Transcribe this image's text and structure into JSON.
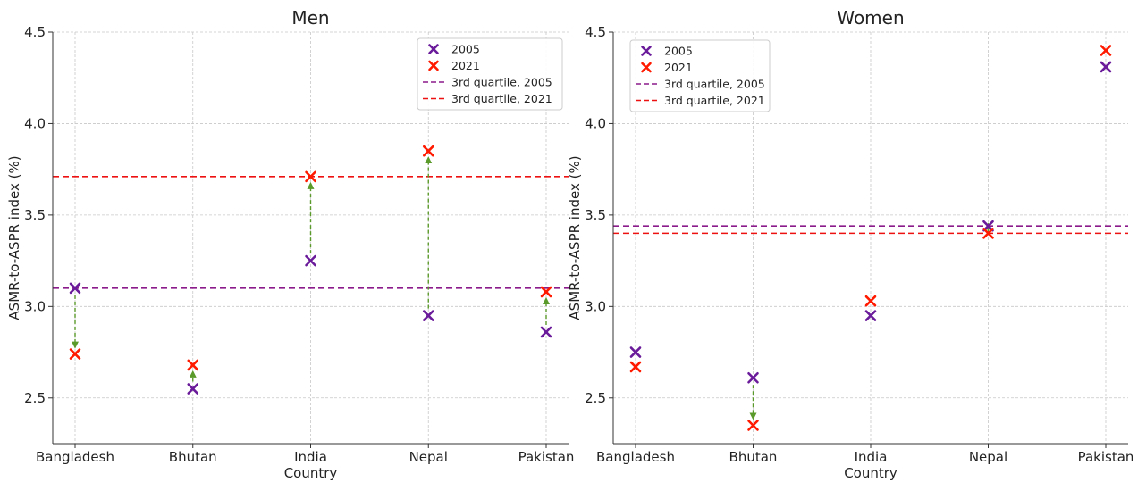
{
  "chart_data": [
    {
      "type": "scatter",
      "title": "Men",
      "xlabel": "Country",
      "ylabel": "ASMR-to-ASPR index (%)",
      "categories": [
        "Bangladesh",
        "Bhutan",
        "India",
        "Nepal",
        "Pakistan"
      ],
      "ylim": [
        2.25,
        4.5
      ],
      "yticks": [
        "2.5",
        "3.0",
        "3.5",
        "4.0",
        "4.5"
      ],
      "grid": true,
      "legend_position": "top-right",
      "series": [
        {
          "name": "2005",
          "marker": "x",
          "color": "#6a1b9a",
          "values": [
            3.1,
            2.55,
            3.25,
            2.95,
            2.86
          ]
        },
        {
          "name": "2021",
          "marker": "x",
          "color": "#ff1a00",
          "values": [
            2.74,
            2.68,
            3.71,
            3.85,
            3.08
          ]
        }
      ],
      "reference_lines": [
        {
          "name": "3rd quartile, 2005",
          "y": 3.1,
          "color": "#8b1a8b",
          "style": "dashed"
        },
        {
          "name": "3rd quartile, 2021",
          "y": 3.71,
          "color": "#ee1111",
          "style": "dashed"
        }
      ],
      "arrows": {
        "from": "2005",
        "to": "2021",
        "color": "#5a9a2a",
        "style": "dashed"
      }
    },
    {
      "type": "scatter",
      "title": "Women",
      "xlabel": "Country",
      "ylabel": "ASMR-to-ASPR index (%)",
      "categories": [
        "Bangladesh",
        "Bhutan",
        "India",
        "Nepal",
        "Pakistan"
      ],
      "ylim": [
        2.25,
        4.5
      ],
      "yticks": [
        "2.5",
        "3.0",
        "3.5",
        "4.0",
        "4.5"
      ],
      "grid": true,
      "legend_position": "top-left",
      "series": [
        {
          "name": "2005",
          "marker": "x",
          "color": "#6a1b9a",
          "values": [
            2.75,
            2.61,
            2.95,
            3.44,
            4.31
          ]
        },
        {
          "name": "2021",
          "marker": "x",
          "color": "#ff1a00",
          "values": [
            2.67,
            2.35,
            3.03,
            3.4,
            4.4
          ]
        }
      ],
      "reference_lines": [
        {
          "name": "3rd quartile, 2005",
          "y": 3.44,
          "color": "#8b1a8b",
          "style": "dashed"
        },
        {
          "name": "3rd quartile, 2021",
          "y": 3.4,
          "color": "#ee1111",
          "style": "dashed"
        }
      ],
      "arrows": {
        "from": "2005",
        "to": "2021",
        "color": "#5a9a2a",
        "style": "dashed"
      }
    }
  ]
}
